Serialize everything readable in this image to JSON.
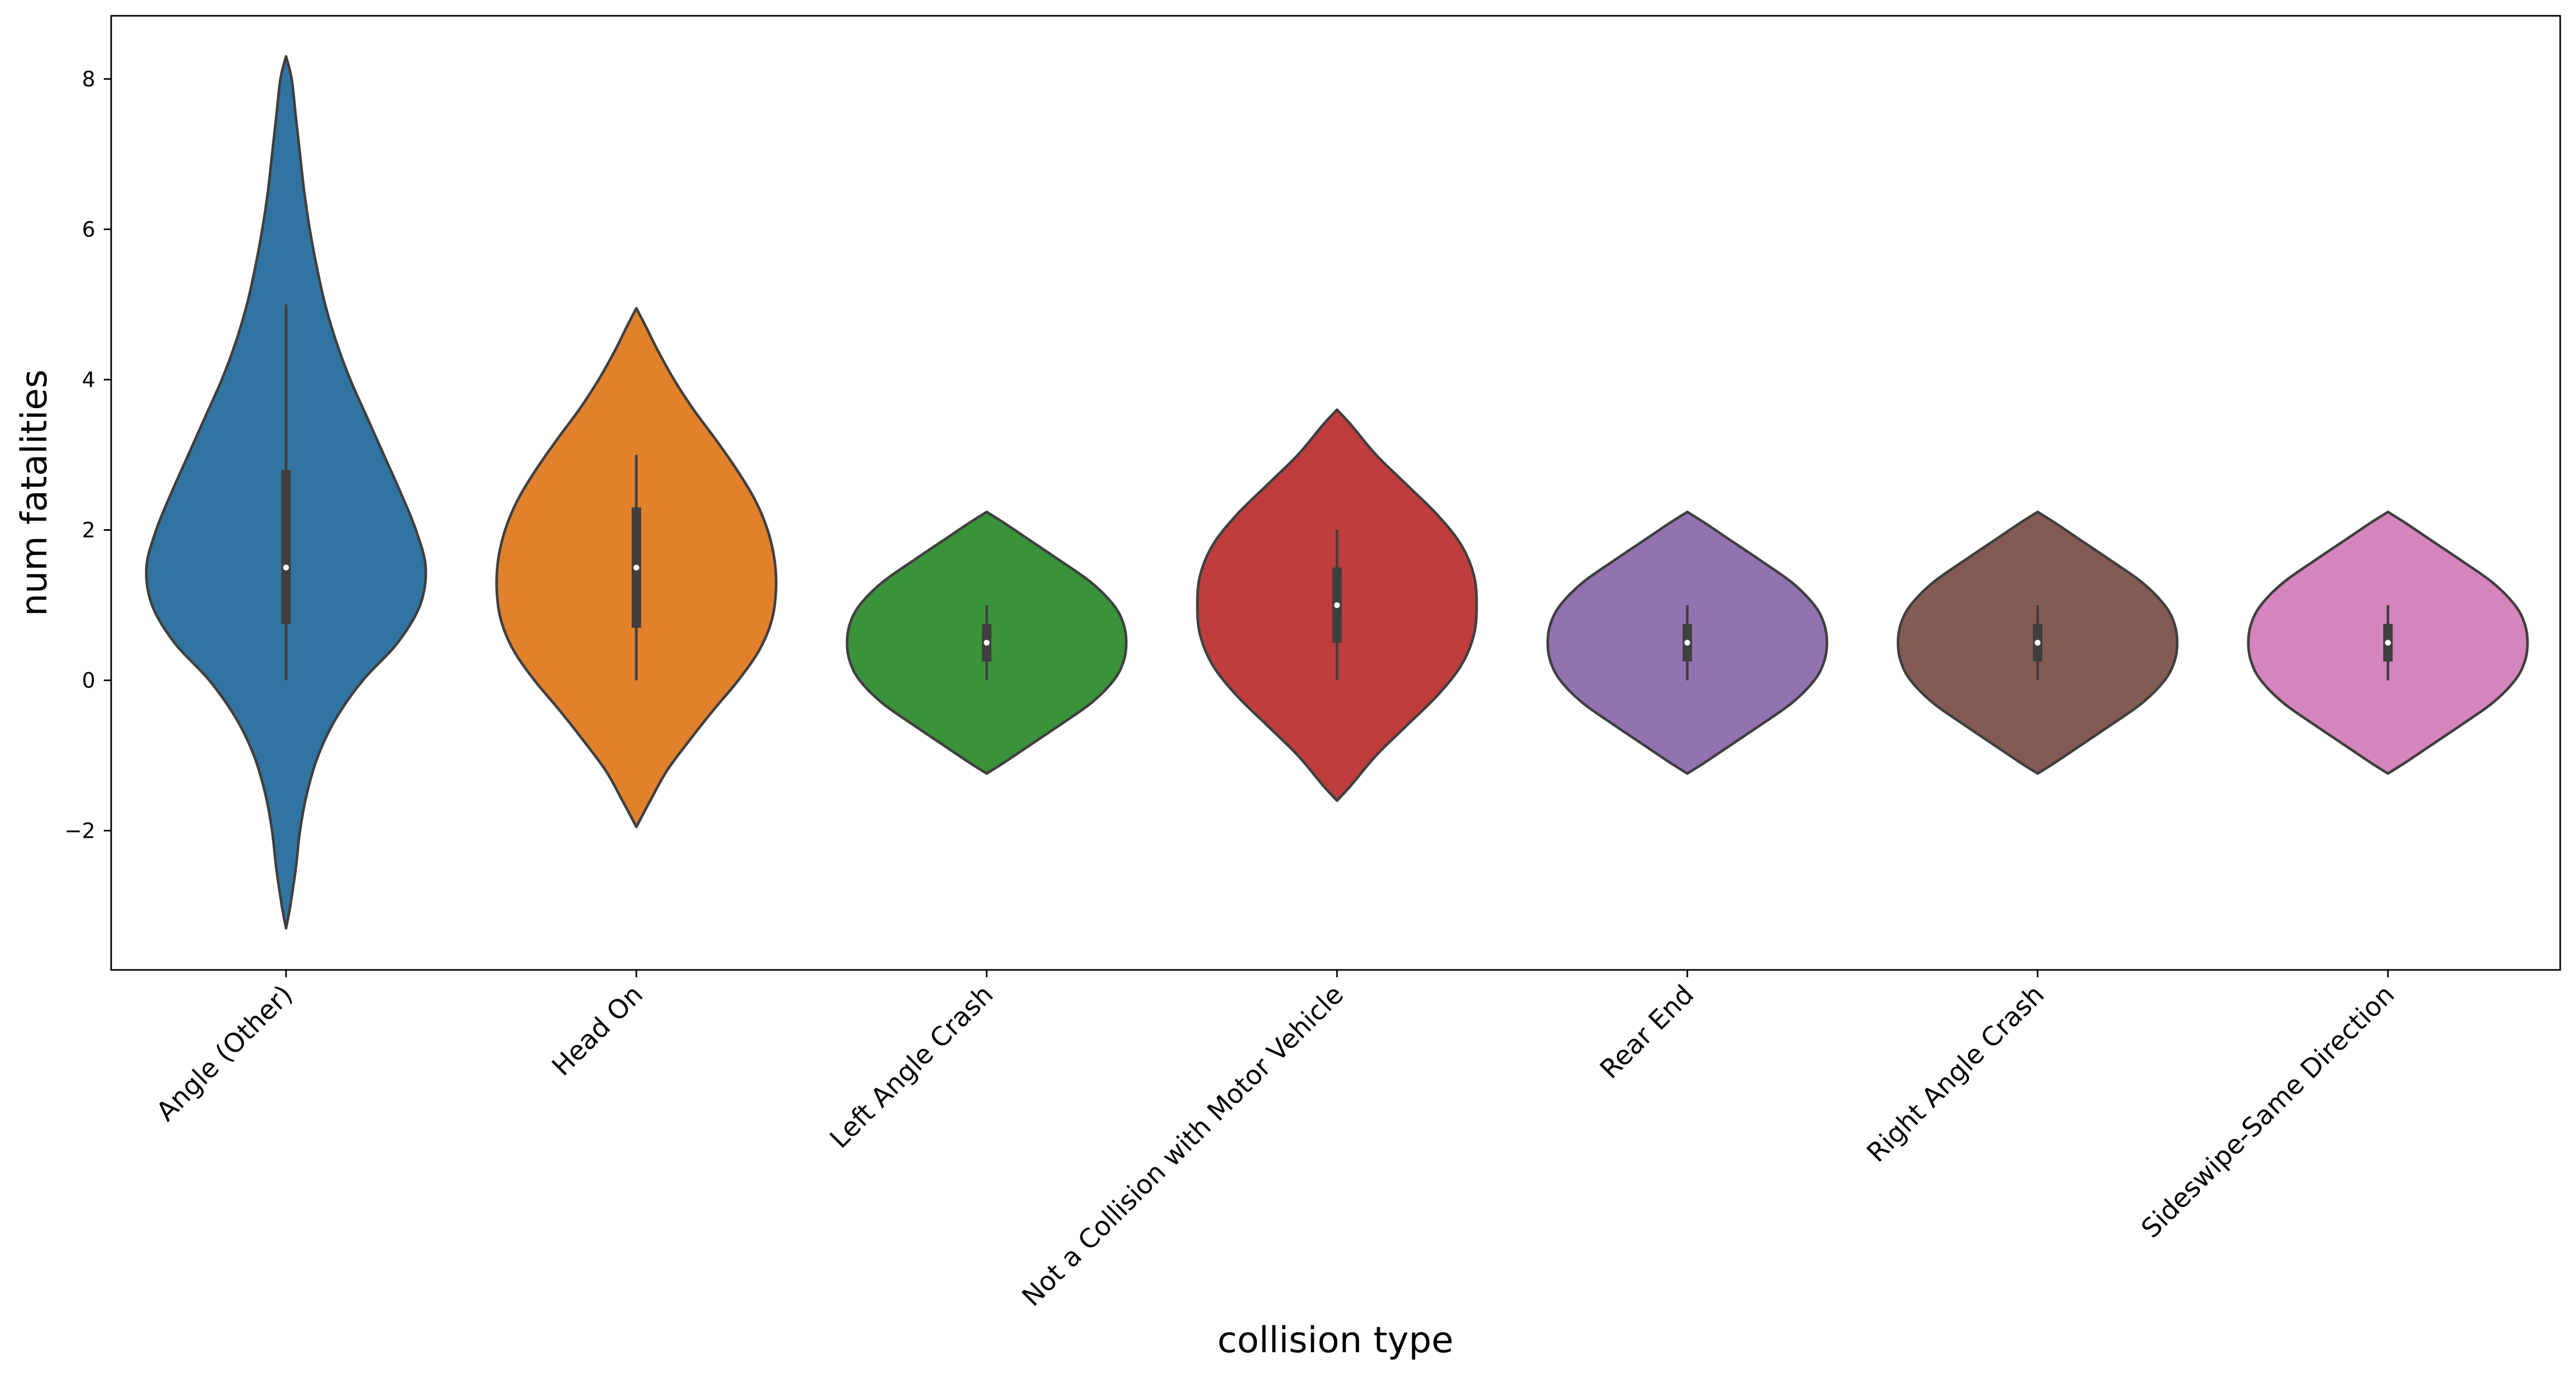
{
  "chart_data": {
    "type": "violin",
    "xlabel": "collision type",
    "ylabel": "num fatalities",
    "ylim": [
      -3.9,
      8.8
    ],
    "yticks": [
      -2,
      0,
      2,
      4,
      6,
      8
    ],
    "ytick_labels": [
      "−2",
      "0",
      "2",
      "4",
      "6",
      "8"
    ],
    "categories": [
      "Angle (Other)",
      "Head On",
      "Left Angle Crash",
      "Not a Collision with Motor Vehicle",
      "Rear End",
      "Right Angle Crash",
      "Sideswipe-Same Direction"
    ],
    "colors": [
      "#3274a1",
      "#e1812c",
      "#3a923a",
      "#c03d3e",
      "#9372b2",
      "#845b53",
      "#d684bd"
    ],
    "violins": [
      {
        "name": "Angle (Other)",
        "kde_min": -3.3,
        "kde_max": 8.3,
        "median": 1.5,
        "q1": 0.75,
        "q3": 2.8,
        "whisker_low": 0,
        "whisker_high": 5,
        "profile": [
          [
            -3.3,
            0.0
          ],
          [
            -3.0,
            0.03
          ],
          [
            -2.5,
            0.07
          ],
          [
            -2.0,
            0.1
          ],
          [
            -1.5,
            0.15
          ],
          [
            -1.0,
            0.23
          ],
          [
            -0.5,
            0.36
          ],
          [
            0.0,
            0.55
          ],
          [
            0.5,
            0.8
          ],
          [
            1.0,
            0.96
          ],
          [
            1.5,
            1.0
          ],
          [
            2.0,
            0.93
          ],
          [
            2.5,
            0.82
          ],
          [
            3.0,
            0.7
          ],
          [
            3.5,
            0.58
          ],
          [
            4.0,
            0.46
          ],
          [
            4.5,
            0.36
          ],
          [
            5.0,
            0.28
          ],
          [
            5.5,
            0.22
          ],
          [
            6.0,
            0.17
          ],
          [
            6.5,
            0.13
          ],
          [
            7.0,
            0.1
          ],
          [
            7.5,
            0.07
          ],
          [
            8.0,
            0.04
          ],
          [
            8.3,
            0.0
          ]
        ]
      },
      {
        "name": "Head On",
        "kde_min": -1.95,
        "kde_max": 4.95,
        "median": 1.5,
        "q1": 0.7,
        "q3": 2.3,
        "whisker_low": 0,
        "whisker_high": 3,
        "profile": [
          [
            -1.95,
            0.0
          ],
          [
            -1.6,
            0.1
          ],
          [
            -1.2,
            0.22
          ],
          [
            -0.8,
            0.38
          ],
          [
            -0.4,
            0.55
          ],
          [
            0.0,
            0.73
          ],
          [
            0.4,
            0.88
          ],
          [
            0.8,
            0.97
          ],
          [
            1.2,
            1.0
          ],
          [
            1.6,
            0.99
          ],
          [
            2.0,
            0.94
          ],
          [
            2.4,
            0.85
          ],
          [
            2.8,
            0.72
          ],
          [
            3.2,
            0.57
          ],
          [
            3.6,
            0.41
          ],
          [
            4.0,
            0.27
          ],
          [
            4.4,
            0.15
          ],
          [
            4.7,
            0.07
          ],
          [
            4.95,
            0.0
          ]
        ]
      },
      {
        "name": "Left Angle Crash",
        "kde_min": -1.24,
        "kde_max": 2.24,
        "median": 0.5,
        "q1": 0.25,
        "q3": 0.75,
        "whisker_low": 0,
        "whisker_high": 1,
        "profile": [
          [
            -1.24,
            0.0
          ],
          [
            -1.1,
            0.12
          ],
          [
            -0.9,
            0.28
          ],
          [
            -0.6,
            0.52
          ],
          [
            -0.3,
            0.75
          ],
          [
            0.0,
            0.91
          ],
          [
            0.25,
            0.98
          ],
          [
            0.5,
            1.0
          ],
          [
            0.75,
            0.98
          ],
          [
            1.0,
            0.91
          ],
          [
            1.3,
            0.75
          ],
          [
            1.6,
            0.52
          ],
          [
            1.9,
            0.28
          ],
          [
            2.1,
            0.12
          ],
          [
            2.24,
            0.0
          ]
        ]
      },
      {
        "name": "Not a Collision with Motor Vehicle",
        "kde_min": -1.6,
        "kde_max": 3.6,
        "median": 1.0,
        "q1": 0.5,
        "q3": 1.5,
        "whisker_low": 0,
        "whisker_high": 2,
        "profile": [
          [
            -1.6,
            0.0
          ],
          [
            -1.4,
            0.1
          ],
          [
            -1.0,
            0.28
          ],
          [
            -0.6,
            0.5
          ],
          [
            -0.2,
            0.72
          ],
          [
            0.2,
            0.89
          ],
          [
            0.6,
            0.98
          ],
          [
            1.0,
            1.0
          ],
          [
            1.4,
            0.98
          ],
          [
            1.8,
            0.89
          ],
          [
            2.2,
            0.72
          ],
          [
            2.6,
            0.5
          ],
          [
            3.0,
            0.28
          ],
          [
            3.4,
            0.1
          ],
          [
            3.6,
            0.0
          ]
        ]
      },
      {
        "name": "Rear End",
        "kde_min": -1.24,
        "kde_max": 2.24,
        "median": 0.5,
        "q1": 0.25,
        "q3": 0.75,
        "whisker_low": 0,
        "whisker_high": 1,
        "profile": [
          [
            -1.24,
            0.0
          ],
          [
            -1.1,
            0.12
          ],
          [
            -0.9,
            0.28
          ],
          [
            -0.6,
            0.52
          ],
          [
            -0.3,
            0.75
          ],
          [
            0.0,
            0.91
          ],
          [
            0.25,
            0.98
          ],
          [
            0.5,
            1.0
          ],
          [
            0.75,
            0.98
          ],
          [
            1.0,
            0.91
          ],
          [
            1.3,
            0.75
          ],
          [
            1.6,
            0.52
          ],
          [
            1.9,
            0.28
          ],
          [
            2.1,
            0.12
          ],
          [
            2.24,
            0.0
          ]
        ]
      },
      {
        "name": "Right Angle Crash",
        "kde_min": -1.24,
        "kde_max": 2.24,
        "median": 0.5,
        "q1": 0.25,
        "q3": 0.75,
        "whisker_low": 0,
        "whisker_high": 1,
        "profile": [
          [
            -1.24,
            0.0
          ],
          [
            -1.1,
            0.12
          ],
          [
            -0.9,
            0.28
          ],
          [
            -0.6,
            0.52
          ],
          [
            -0.3,
            0.75
          ],
          [
            0.0,
            0.91
          ],
          [
            0.25,
            0.98
          ],
          [
            0.5,
            1.0
          ],
          [
            0.75,
            0.98
          ],
          [
            1.0,
            0.91
          ],
          [
            1.3,
            0.75
          ],
          [
            1.6,
            0.52
          ],
          [
            1.9,
            0.28
          ],
          [
            2.1,
            0.12
          ],
          [
            2.24,
            0.0
          ]
        ]
      },
      {
        "name": "Sideswipe-Same Direction",
        "kde_min": -1.24,
        "kde_max": 2.24,
        "median": 0.5,
        "q1": 0.25,
        "q3": 0.75,
        "whisker_low": 0,
        "whisker_high": 1,
        "profile": [
          [
            -1.24,
            0.0
          ],
          [
            -1.1,
            0.12
          ],
          [
            -0.9,
            0.28
          ],
          [
            -0.6,
            0.52
          ],
          [
            -0.3,
            0.75
          ],
          [
            0.0,
            0.91
          ],
          [
            0.25,
            0.98
          ],
          [
            0.5,
            1.0
          ],
          [
            0.75,
            0.98
          ],
          [
            1.0,
            0.91
          ],
          [
            1.3,
            0.75
          ],
          [
            1.6,
            0.52
          ],
          [
            1.9,
            0.28
          ],
          [
            2.1,
            0.12
          ],
          [
            2.24,
            0.0
          ]
        ]
      }
    ],
    "grid": false,
    "legend": "none"
  }
}
